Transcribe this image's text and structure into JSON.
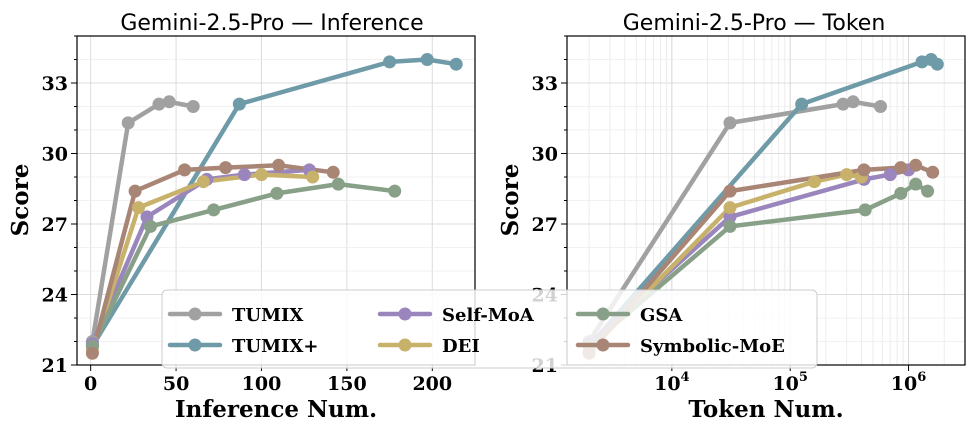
{
  "colors": {
    "TUMIX": "#a1a1a1",
    "TUMIX+": "#6f9aa8",
    "Self-MoA": "#9a86bd",
    "DEI": "#c8b26b",
    "GSA": "#88a088",
    "Symbolic-MoE": "#a98576"
  },
  "legend": {
    "entries": [
      "TUMIX",
      "TUMIX+",
      "Self-MoA",
      "DEI",
      "GSA",
      "Symbolic-MoE"
    ],
    "placement": "lower-center, spanning both panels"
  },
  "chart_data": [
    {
      "type": "line",
      "title": "Gemini-2.5-Pro — Inference",
      "xlabel": "Inference Num.",
      "ylabel": "Score",
      "xscale": "linear",
      "xlim": [
        -8,
        225
      ],
      "ylim": [
        21,
        35
      ],
      "xticks": [
        0,
        50,
        100,
        150,
        200
      ],
      "xtick_labels": [
        "0",
        "50",
        "100",
        "150",
        "200"
      ],
      "yticks": [
        21,
        24,
        27,
        30,
        33
      ],
      "ytick_labels": [
        "21",
        "24",
        "27",
        "30",
        "33"
      ],
      "series": [
        {
          "name": "TUMIX",
          "x": [
            1,
            22,
            40,
            46,
            60
          ],
          "y": [
            22.0,
            31.3,
            32.1,
            32.2,
            32.0
          ]
        },
        {
          "name": "TUMIX+",
          "x": [
            1,
            87,
            175,
            197,
            214
          ],
          "y": [
            21.8,
            32.1,
            33.9,
            34.0,
            33.8
          ]
        },
        {
          "name": "Self-MoA",
          "x": [
            1,
            33,
            68,
            90,
            128
          ],
          "y": [
            21.9,
            27.3,
            28.9,
            29.1,
            29.3
          ]
        },
        {
          "name": "DEI",
          "x": [
            1,
            28,
            66,
            100,
            130
          ],
          "y": [
            21.6,
            27.7,
            28.8,
            29.1,
            29.0
          ]
        },
        {
          "name": "GSA",
          "x": [
            1,
            35,
            72,
            109,
            145,
            178
          ],
          "y": [
            21.8,
            26.9,
            27.6,
            28.3,
            28.7,
            28.4
          ]
        },
        {
          "name": "Symbolic-MoE",
          "x": [
            1,
            26,
            55,
            79,
            110,
            142
          ],
          "y": [
            21.5,
            28.4,
            29.3,
            29.4,
            29.5,
            29.2
          ]
        }
      ]
    },
    {
      "type": "line",
      "title": "Gemini-2.5-Pro — Token",
      "xlabel": "Token Num.",
      "ylabel": "Score",
      "xscale": "log",
      "xlim": [
        1300,
        3000000
      ],
      "ylim": [
        21,
        35
      ],
      "xticks": [
        10000,
        100000,
        1000000
      ],
      "xtick_labels": [
        "10",
        "10",
        "10"
      ],
      "xtick_exponents": [
        "4",
        "5",
        "6"
      ],
      "yticks": [
        21,
        24,
        27,
        30,
        33
      ],
      "ytick_labels": [
        "21",
        "24",
        "27",
        "30",
        "33"
      ],
      "series": [
        {
          "name": "TUMIX",
          "x": [
            2000,
            31000,
            280000,
            340000,
            580000
          ],
          "y": [
            22.0,
            31.3,
            32.1,
            32.2,
            32.0
          ]
        },
        {
          "name": "TUMIX+",
          "x": [
            2000,
            125000,
            1300000,
            1550000,
            1750000
          ],
          "y": [
            21.8,
            32.1,
            33.9,
            34.0,
            33.8
          ]
        },
        {
          "name": "Self-MoA",
          "x": [
            2000,
            31000,
            420000,
            700000,
            1000000
          ],
          "y": [
            21.9,
            27.3,
            28.9,
            29.1,
            29.3
          ]
        },
        {
          "name": "DEI",
          "x": [
            2000,
            31000,
            160000,
            300000,
            400000
          ],
          "y": [
            21.6,
            27.7,
            28.8,
            29.1,
            29.0
          ]
        },
        {
          "name": "GSA",
          "x": [
            2000,
            31000,
            430000,
            860000,
            1150000,
            1450000
          ],
          "y": [
            21.8,
            26.9,
            27.6,
            28.3,
            28.7,
            28.4
          ]
        },
        {
          "name": "Symbolic-MoE",
          "x": [
            2000,
            31000,
            420000,
            860000,
            1150000,
            1600000
          ],
          "y": [
            21.5,
            28.4,
            29.3,
            29.4,
            29.5,
            29.2
          ]
        }
      ]
    }
  ]
}
